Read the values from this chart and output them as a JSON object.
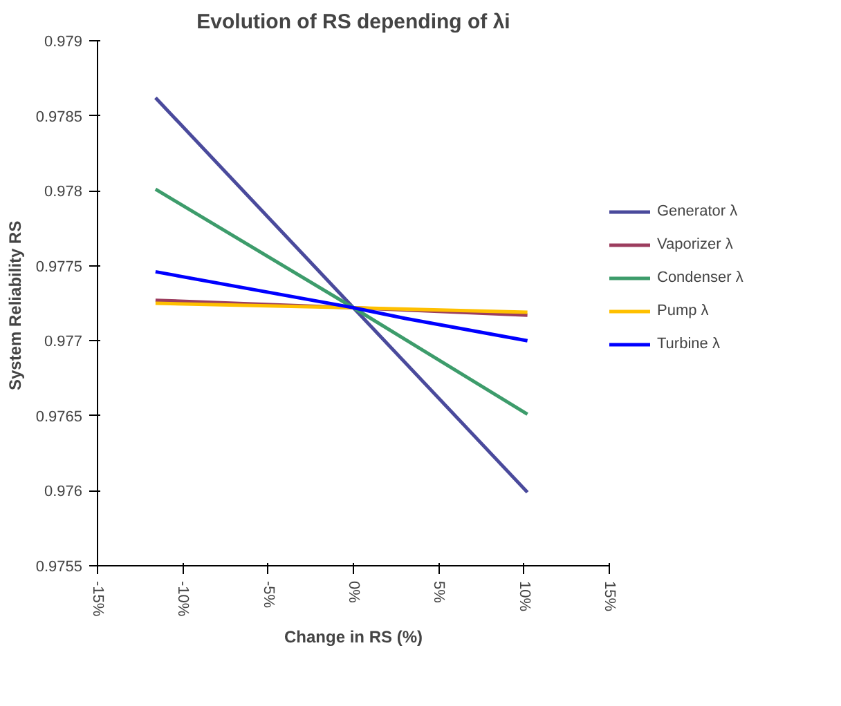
{
  "chart_data": {
    "type": "line",
    "title": "Evolution of RS depending of λi",
    "xlabel": "Change in RS (%)",
    "ylabel": "System Reliability  RS",
    "xlim": [
      -15,
      15
    ],
    "xticks": [
      {
        "value": -15,
        "label": "-15%"
      },
      {
        "value": -10,
        "label": "-10%"
      },
      {
        "value": -5,
        "label": "-5%"
      },
      {
        "value": 0,
        "label": "0%"
      },
      {
        "value": 5,
        "label": "5%"
      },
      {
        "value": 10,
        "label": "10%"
      },
      {
        "value": 15,
        "label": "15%"
      }
    ],
    "ylim": [
      0.9755,
      0.979
    ],
    "yticks": [
      0.9755,
      0.976,
      0.9765,
      0.977,
      0.9775,
      0.978,
      0.9785,
      0.979
    ],
    "x": [
      -11.6,
      0,
      10.2
    ],
    "series": [
      {
        "name": "Generator λ",
        "color": "#4a4a9c",
        "values": [
          0.97862,
          0.97722,
          0.97599
        ]
      },
      {
        "name": "Vaporizer λ",
        "color": "#9c3d5e",
        "values": [
          0.97727,
          0.97722,
          0.97717
        ]
      },
      {
        "name": "Condenser λ",
        "color": "#3d9c6b",
        "values": [
          0.97801,
          0.97722,
          0.97651
        ]
      },
      {
        "name": "Pump λ",
        "color": "#ffc000",
        "values": [
          0.97725,
          0.97722,
          0.97719
        ]
      },
      {
        "name": "Turbine λ",
        "color": "#0000ff",
        "x": [
          -11.6,
          0,
          3,
          10.2
        ],
        "values": [
          0.97746,
          0.97722,
          0.97715,
          0.977
        ]
      }
    ],
    "grid": false,
    "legend": "right",
    "marker": "none",
    "line_style": "solid"
  }
}
